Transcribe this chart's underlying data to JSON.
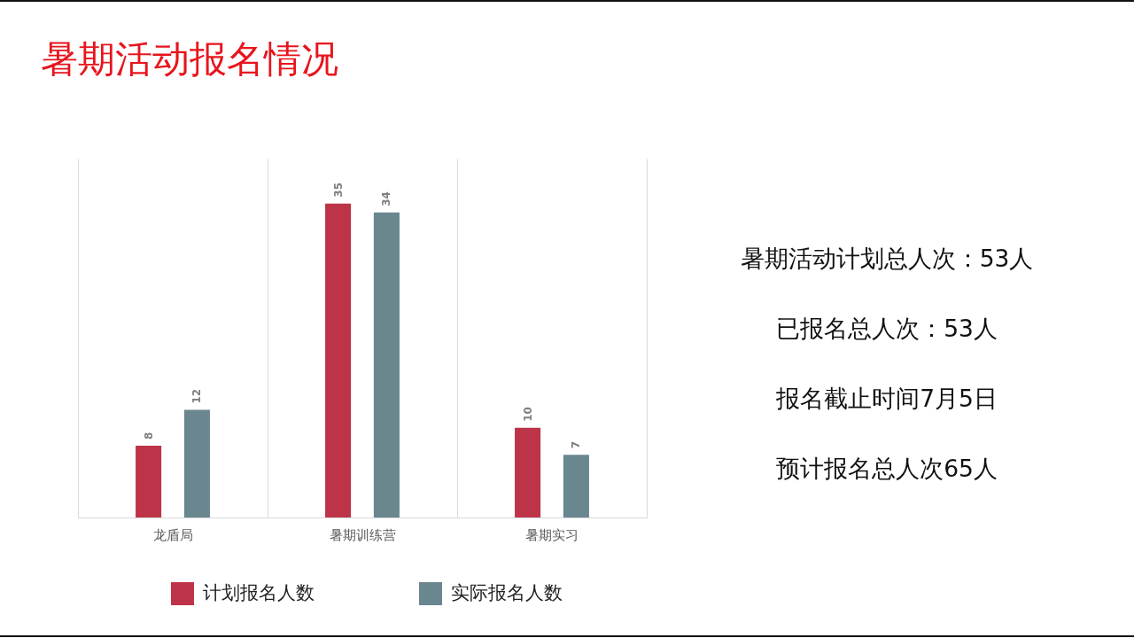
{
  "chart_data": {
    "type": "bar",
    "title": "暑期活动报名情况",
    "categories": [
      "龙盾局",
      "暑期训练营",
      "暑期实习"
    ],
    "series": [
      {
        "name": "计划报名人数",
        "color": "#bd3448",
        "values": [
          8,
          35,
          10
        ]
      },
      {
        "name": "实际报名人数",
        "color": "#6a868e",
        "values": [
          12,
          34,
          7
        ]
      }
    ],
    "ylim": [
      0,
      40
    ],
    "data_labels": true,
    "grid": "x",
    "legend": "bottom",
    "tick_labels": "x",
    "annotations": [
      "暑期活动计划总人次：53人",
      "已报名总人次：53人",
      "报名截止时间7月5日",
      "预计报名总人次65人"
    ]
  }
}
